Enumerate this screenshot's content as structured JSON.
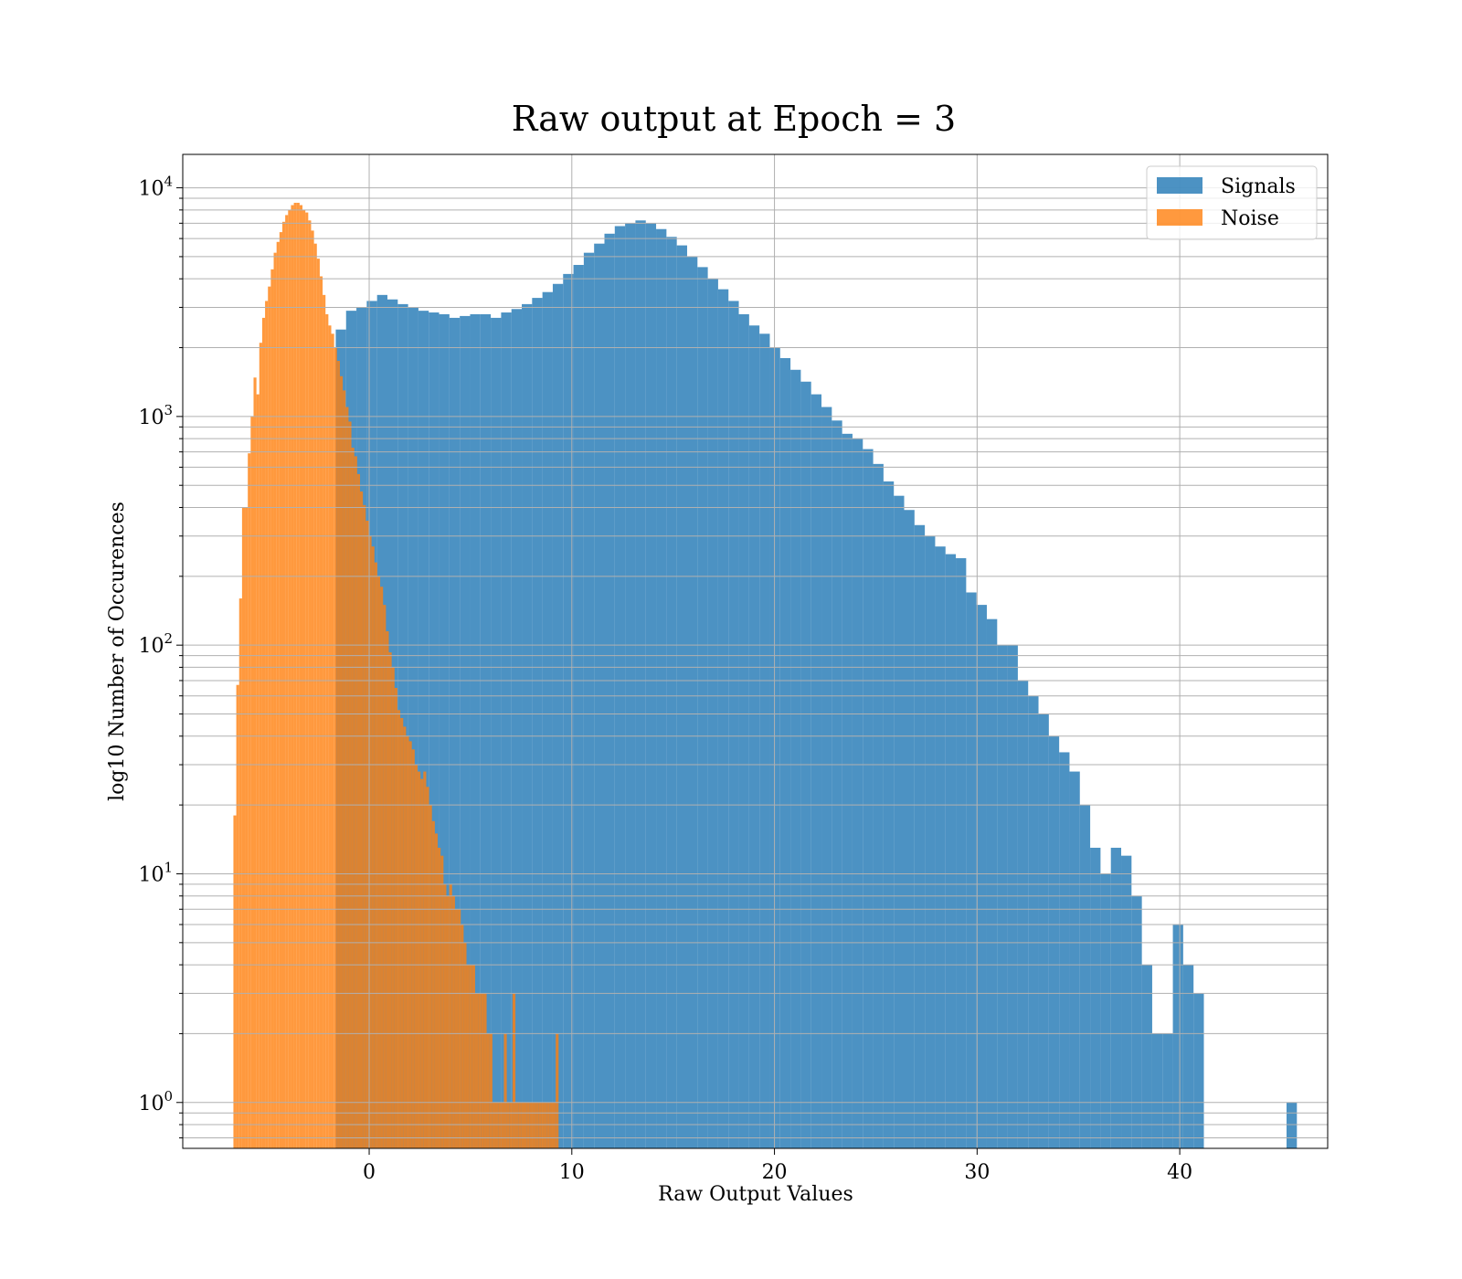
{
  "chart_data": {
    "type": "histogram",
    "title": "Raw output at Epoch = 3",
    "xlabel": "Raw Output Values",
    "ylabel": "log10 Number of Occurences",
    "xlim": [
      -9.2,
      47.3
    ],
    "ylim": [
      0.63,
      14000
    ],
    "yscale": "log",
    "grid": true,
    "legend_position": "top-right",
    "x_ticks": [
      {
        "value": 0,
        "label": "0"
      },
      {
        "value": 10,
        "label": "10"
      },
      {
        "value": 20,
        "label": "20"
      },
      {
        "value": 30,
        "label": "30"
      },
      {
        "value": 40,
        "label": "40"
      }
    ],
    "y_ticks": [
      {
        "value": 1,
        "base": "10",
        "exp": "0"
      },
      {
        "value": 10,
        "base": "10",
        "exp": "1"
      },
      {
        "value": 100,
        "base": "10",
        "exp": "2"
      },
      {
        "value": 1000,
        "base": "10",
        "exp": "3"
      },
      {
        "value": 10000,
        "base": "10",
        "exp": "4"
      }
    ],
    "series": [
      {
        "name": "Signals",
        "color": "#1f77b4",
        "opacity": 0.8,
        "bin_start": -1.65,
        "bin_width": 0.51,
        "counts": [
          2400,
          2900,
          3000,
          3200,
          3400,
          3250,
          3100,
          3000,
          2900,
          2850,
          2800,
          2700,
          2750,
          2800,
          2800,
          2700,
          2850,
          2950,
          3100,
          3300,
          3500,
          3800,
          4200,
          4600,
          5200,
          5700,
          6300,
          6800,
          7000,
          7200,
          7000,
          6600,
          6100,
          5600,
          5000,
          4500,
          4000,
          3600,
          3200,
          2800,
          2500,
          2300,
          2000,
          1800,
          1600,
          1420,
          1250,
          1100,
          960,
          840,
          800,
          720,
          620,
          520,
          450,
          390,
          335,
          300,
          270,
          250,
          240,
          170,
          150,
          130,
          100,
          100,
          70,
          60,
          50,
          40,
          34,
          28,
          20,
          13,
          10,
          13,
          12,
          8,
          4,
          2,
          2,
          6,
          4,
          3,
          0,
          0,
          0,
          0,
          0,
          0,
          0,
          0,
          1
        ]
      },
      {
        "name": "Noise",
        "color": "#ff7f0e",
        "opacity": 0.8,
        "bin_start": -6.7,
        "bin_width": 0.142,
        "counts": [
          18,
          67,
          160,
          400,
          400,
          690,
          1000,
          1480,
          1250,
          2100,
          2700,
          3200,
          3700,
          4400,
          5200,
          5800,
          6400,
          7100,
          7600,
          8000,
          8400,
          8600,
          8600,
          8400,
          8000,
          7800,
          7200,
          6500,
          5700,
          4900,
          4100,
          3400,
          2800,
          2500,
          2300,
          2000,
          1750,
          1500,
          1300,
          1100,
          950,
          730,
          670,
          560,
          470,
          410,
          350,
          300,
          270,
          230,
          200,
          180,
          150,
          115,
          93,
          80,
          65,
          52,
          48,
          44,
          40,
          38,
          35,
          30,
          28,
          26,
          28,
          24,
          20,
          17,
          15,
          13,
          12,
          9,
          8,
          9,
          8,
          7,
          7,
          6,
          5,
          4,
          4,
          4,
          3,
          3,
          3,
          3,
          2,
          2,
          1,
          1,
          1,
          1,
          2,
          1,
          1,
          3,
          1,
          1,
          1,
          1,
          1,
          1,
          1,
          1,
          1,
          1,
          1,
          1,
          1,
          1,
          2
        ]
      }
    ]
  }
}
